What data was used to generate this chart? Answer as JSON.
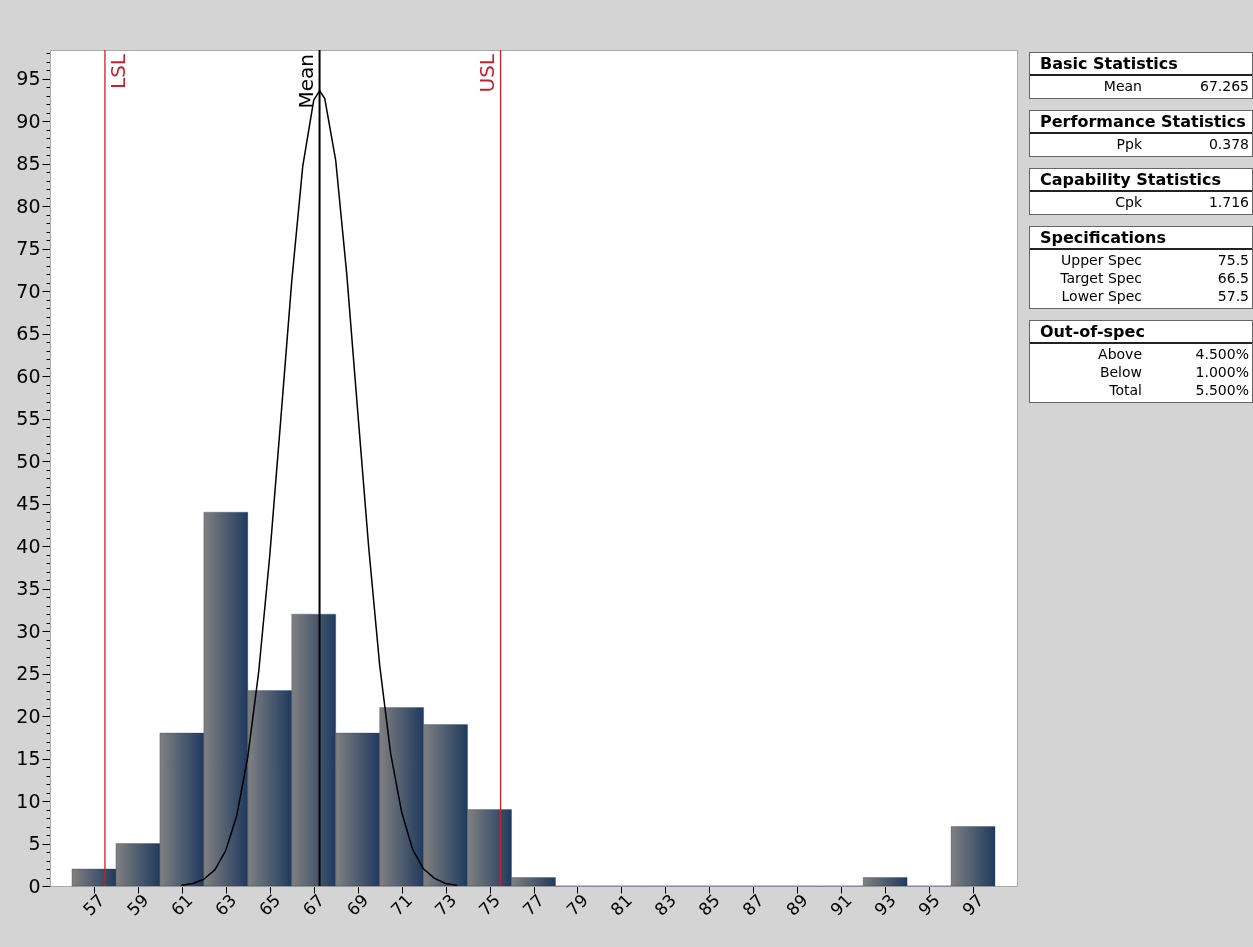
{
  "chart_data": {
    "type": "histogram",
    "bins": [
      56,
      58,
      60,
      62,
      64,
      66,
      68,
      70,
      72,
      74,
      76,
      78,
      80,
      82,
      84,
      86,
      88,
      90,
      92,
      94,
      96,
      98
    ],
    "values": [
      2,
      5,
      18,
      44,
      23,
      32,
      18,
      21,
      19,
      9,
      1,
      0,
      0,
      0,
      0,
      0,
      0,
      0,
      1,
      0,
      7
    ],
    "color": "#1f3a5f",
    "series": [
      {
        "type": "line",
        "color": "#000000",
        "x": [
          61,
          61.5,
          62,
          62.5,
          63,
          63.5,
          64,
          64.5,
          65,
          65.5,
          66,
          66.5,
          67,
          67.265,
          67.5,
          68,
          68.5,
          69,
          69.5,
          70,
          70.5,
          71,
          71.5,
          72,
          72.5,
          73,
          73.5
        ],
        "values": [
          0.1,
          0.3,
          0.8,
          1.9,
          4.2,
          8.3,
          15.2,
          25.3,
          38.9,
          54.9,
          71.2,
          84.7,
          92.5,
          93.6,
          92.7,
          85.4,
          72.1,
          55.9,
          39.9,
          26.0,
          15.6,
          8.7,
          4.3,
          2.0,
          0.9,
          0.3,
          0.1
        ]
      }
    ],
    "xlim": [
      55,
      99
    ],
    "xticks": [
      57,
      59,
      61,
      63,
      65,
      67,
      69,
      71,
      73,
      75,
      77,
      79,
      81,
      83,
      85,
      87,
      89,
      91,
      93,
      95,
      97
    ],
    "ylim": [
      0,
      98.4
    ],
    "yticks": [
      0,
      {
        "value": 1,
        "label": null
      },
      {
        "value": 2,
        "label": null
      },
      {
        "value": 3,
        "label": null
      },
      {
        "value": 4,
        "label": null
      },
      5,
      {
        "value": 6,
        "label": null
      },
      {
        "value": 7,
        "label": null
      },
      {
        "value": 8,
        "label": null
      },
      {
        "value": 9,
        "label": null
      },
      10,
      {
        "value": 11,
        "label": null
      },
      {
        "value": 12,
        "label": null
      },
      {
        "value": 13,
        "label": null
      },
      {
        "value": 14,
        "label": null
      },
      15,
      {
        "value": 16,
        "label": null
      },
      {
        "value": 17,
        "label": null
      },
      {
        "value": 18,
        "label": null
      },
      {
        "value": 19,
        "label": null
      },
      20,
      {
        "value": 21,
        "label": null
      },
      {
        "value": 22,
        "label": null
      },
      {
        "value": 23,
        "label": null
      },
      {
        "value": 24,
        "label": null
      },
      25,
      {
        "value": 26,
        "label": null
      },
      {
        "value": 27,
        "label": null
      },
      {
        "value": 28,
        "label": null
      },
      {
        "value": 29,
        "label": null
      },
      30,
      {
        "value": 31,
        "label": null
      },
      {
        "value": 32,
        "label": null
      },
      {
        "value": 33,
        "label": null
      },
      {
        "value": 34,
        "label": null
      },
      35,
      {
        "value": 36,
        "label": null
      },
      {
        "value": 37,
        "label": null
      },
      {
        "value": 38,
        "label": null
      },
      {
        "value": 39,
        "label": null
      },
      40,
      {
        "value": 41,
        "label": null
      },
      {
        "value": 42,
        "label": null
      },
      {
        "value": 43,
        "label": null
      },
      {
        "value": 44,
        "label": null
      },
      45,
      {
        "value": 46,
        "label": null
      },
      {
        "value": 47,
        "label": null
      },
      {
        "value": 48,
        "label": null
      },
      {
        "value": 49,
        "label": null
      },
      50,
      {
        "value": 51,
        "label": null
      },
      {
        "value": 52,
        "label": null
      },
      {
        "value": 53,
        "label": null
      },
      {
        "value": 54,
        "label": null
      },
      55,
      {
        "value": 56,
        "label": null
      },
      {
        "value": 57,
        "label": null
      },
      {
        "value": 58,
        "label": null
      },
      {
        "value": 59,
        "label": null
      },
      60,
      {
        "value": 61,
        "label": null
      },
      {
        "value": 62,
        "label": null
      },
      {
        "value": 63,
        "label": null
      },
      {
        "value": 64,
        "label": null
      },
      65,
      {
        "value": 66,
        "label": null
      },
      {
        "value": 67,
        "label": null
      },
      {
        "value": 68,
        "label": null
      },
      {
        "value": 69,
        "label": null
      },
      70,
      {
        "value": 71,
        "label": null
      },
      {
        "value": 72,
        "label": null
      },
      {
        "value": 73,
        "label": null
      },
      {
        "value": 74,
        "label": null
      },
      75,
      {
        "value": 76,
        "label": null
      },
      {
        "value": 77,
        "label": null
      },
      {
        "value": 78,
        "label": null
      },
      {
        "value": 79,
        "label": null
      },
      80,
      {
        "value": 81,
        "label": null
      },
      {
        "value": 82,
        "label": null
      },
      {
        "value": 83,
        "label": null
      },
      {
        "value": 84,
        "label": null
      },
      85,
      {
        "value": 86,
        "label": null
      },
      {
        "value": 87,
        "label": null
      },
      {
        "value": 88,
        "label": null
      },
      {
        "value": 89,
        "label": null
      },
      90,
      {
        "value": 91,
        "label": null
      },
      {
        "value": 92,
        "label": null
      },
      {
        "value": 93,
        "label": null
      },
      {
        "value": 94,
        "label": null
      },
      95,
      {
        "value": 96,
        "label": null
      },
      {
        "value": 97,
        "label": null
      },
      {
        "value": 98,
        "label": null
      }
    ],
    "ref_lines": [
      {
        "axis": "x",
        "value": 57.5,
        "label": "LSL",
        "color": "#c8202a"
      },
      {
        "axis": "x",
        "value": 67.265,
        "label": "Mean",
        "color": "#000000"
      },
      {
        "axis": "x",
        "value": 75.5,
        "label": "USL",
        "color": "#c8202a"
      }
    ],
    "annotations": [
      "Basic Statistics\nMean\t67.265",
      "Performance Statistics\nPpk\t0.378",
      "Capability Statistics\nCpk\t1.716",
      "Specifications\nUpper Spec\t75.5\nTarget Spec\t66.5\nLower Spec\t57.5",
      "Out-of-spec\nAbove\t4.500%\nBelow\t1.000%\nTotal\t5.500%"
    ]
  }
}
